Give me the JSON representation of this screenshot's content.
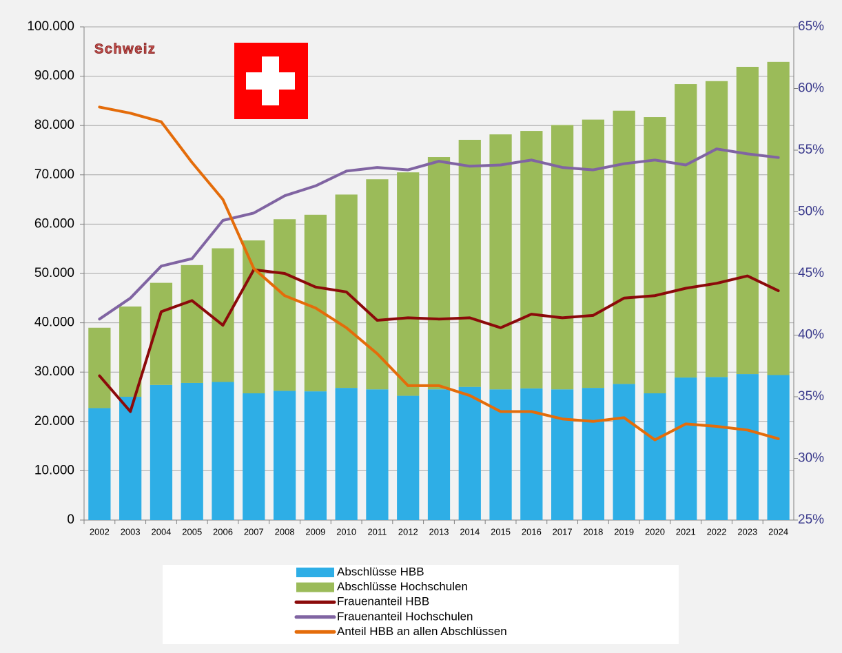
{
  "chart_data": {
    "type": "bar",
    "title": "Schweiz",
    "title_color": "#c0504d",
    "stacked": true,
    "grid": true,
    "legend": "bottom",
    "categories": [
      "2002",
      "2003",
      "2004",
      "2005",
      "2006",
      "2007",
      "2008",
      "2009",
      "2010",
      "2011",
      "2012",
      "2013",
      "2014",
      "2015",
      "2016",
      "2017",
      "2018",
      "2019",
      "2020",
      "2021",
      "2022",
      "2023",
      "2024"
    ],
    "series": [
      {
        "name": "Abschlüsse HBB",
        "type": "bar",
        "color": "#2eaee6",
        "values": [
          22700,
          25000,
          27400,
          27800,
          28000,
          25700,
          26200,
          26100,
          26800,
          26500,
          25200,
          26500,
          27000,
          26500,
          26700,
          26500,
          26800,
          27600,
          25700,
          28900,
          29000,
          29600,
          29400
        ]
      },
      {
        "name": "Abschlüsse Hochschulen",
        "type": "bar",
        "color": "#9bbb59",
        "values": [
          16300,
          18300,
          20700,
          23900,
          27100,
          31000,
          34800,
          35800,
          39200,
          42600,
          45300,
          47100,
          50100,
          51700,
          52200,
          53600,
          54400,
          55400,
          56000,
          59500,
          60000,
          62300,
          63500
        ]
      },
      {
        "name": "Frauenanteil HBB",
        "type": "line",
        "axis": "y2",
        "color": "#8b0a0a",
        "legend_color": "#c00000",
        "values": [
          36.7,
          33.8,
          41.9,
          42.8,
          40.8,
          45.3,
          45.0,
          43.9,
          43.5,
          41.2,
          41.4,
          41.3,
          41.4,
          40.6,
          41.7,
          41.4,
          41.6,
          43.0,
          43.2,
          43.8,
          44.2,
          44.8,
          43.6
        ]
      },
      {
        "name": "Frauenanteil Hochschulen",
        "type": "line",
        "axis": "y2",
        "color": "#8064a2",
        "values": [
          41.3,
          43.0,
          45.6,
          46.2,
          49.3,
          49.9,
          51.3,
          52.1,
          53.3,
          53.6,
          53.4,
          54.1,
          53.7,
          53.8,
          54.2,
          53.6,
          53.4,
          53.9,
          54.2,
          53.8,
          55.1,
          54.7,
          54.4
        ]
      },
      {
        "name": "Anteil HBB an allen Abschlüssen",
        "type": "line",
        "axis": "y2",
        "color": "#e46c0a",
        "values": [
          58.5,
          58.0,
          57.3,
          54.0,
          51.0,
          45.4,
          43.2,
          42.2,
          40.6,
          38.5,
          35.9,
          35.9,
          35.1,
          33.8,
          33.8,
          33.2,
          33.0,
          33.3,
          31.5,
          32.8,
          32.6,
          32.3,
          31.6
        ]
      }
    ],
    "ylim": [
      0,
      100000
    ],
    "yticks": [
      0,
      {
        "value": 10000,
        "label": "10.000"
      },
      {
        "value": 20000,
        "label": "20.000"
      },
      {
        "value": 30000,
        "label": "30.000"
      },
      {
        "value": 40000,
        "label": "40.000"
      },
      {
        "value": 50000,
        "label": "50.000"
      },
      {
        "value": 60000,
        "label": "60.000"
      },
      {
        "value": 70000,
        "label": "70.000"
      },
      {
        "value": 80000,
        "label": "80.000"
      },
      {
        "value": 90000,
        "label": "90.000"
      },
      {
        "value": 100000,
        "label": "100.000"
      }
    ],
    "y2lim": [
      25,
      65
    ],
    "y2ticks": [
      {
        "value": 25,
        "label": "25%"
      },
      {
        "value": 30,
        "label": "30%"
      },
      {
        "value": 35,
        "label": "35%"
      },
      {
        "value": 40,
        "label": "40%"
      },
      {
        "value": 45,
        "label": "45%"
      },
      {
        "value": 50,
        "label": "50%"
      },
      {
        "value": 55,
        "label": "55%"
      },
      {
        "value": 60,
        "label": "60%"
      },
      {
        "value": 65,
        "label": "65%"
      }
    ]
  }
}
